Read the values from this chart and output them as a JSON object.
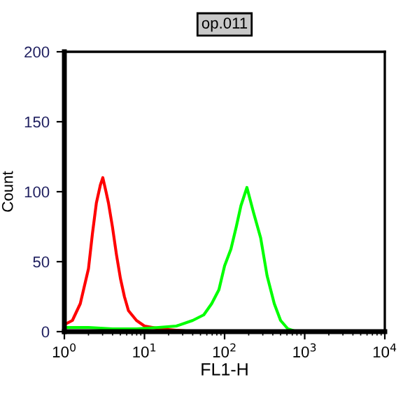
{
  "chart_data": {
    "type": "line",
    "title": "op.011",
    "xlabel": "FL1-H",
    "ylabel": "Count",
    "log": "x",
    "xlim": [
      1,
      10000
    ],
    "xticks": [
      {
        "value": 1,
        "label": "10$^{0}$"
      },
      {
        "value": 10,
        "label": "10$^{1}$"
      },
      {
        "value": 100,
        "label": "10$^{2}$"
      },
      {
        "value": 1000,
        "label": "10$^{3}$"
      },
      {
        "value": 10000,
        "label": "10$^{4}$"
      }
    ],
    "ylim": [
      0,
      200
    ],
    "yticks": [
      0,
      50,
      100,
      150,
      200
    ],
    "grid": false,
    "legend": false,
    "series": [
      {
        "color": "#ff0000",
        "x": [
          1,
          1.26,
          1.58,
          2.0,
          2.24,
          2.51,
          2.82,
          3.02,
          3.31,
          3.55,
          3.98,
          4.47,
          5.01,
          5.62,
          6.31,
          7.94,
          10,
          12.6,
          15.8,
          25.1,
          39.8
        ],
        "values": [
          5,
          8,
          20,
          45,
          70,
          92,
          105,
          110,
          100,
          92,
          75,
          55,
          38,
          25,
          15,
          8,
          4,
          3,
          2,
          1,
          0
        ]
      },
      {
        "color": "#00ff00",
        "x": [
          1,
          2,
          4,
          8,
          15,
          25,
          40,
          55,
          69,
          85,
          100,
          120,
          140,
          160,
          190,
          230,
          282,
          339,
          417,
          500,
          616,
          794
        ],
        "values": [
          3,
          3,
          2,
          2,
          3,
          4,
          8,
          12,
          20,
          30,
          47,
          59,
          75,
          90,
          103,
          85,
          67,
          40,
          20,
          8,
          2,
          0
        ]
      }
    ]
  }
}
